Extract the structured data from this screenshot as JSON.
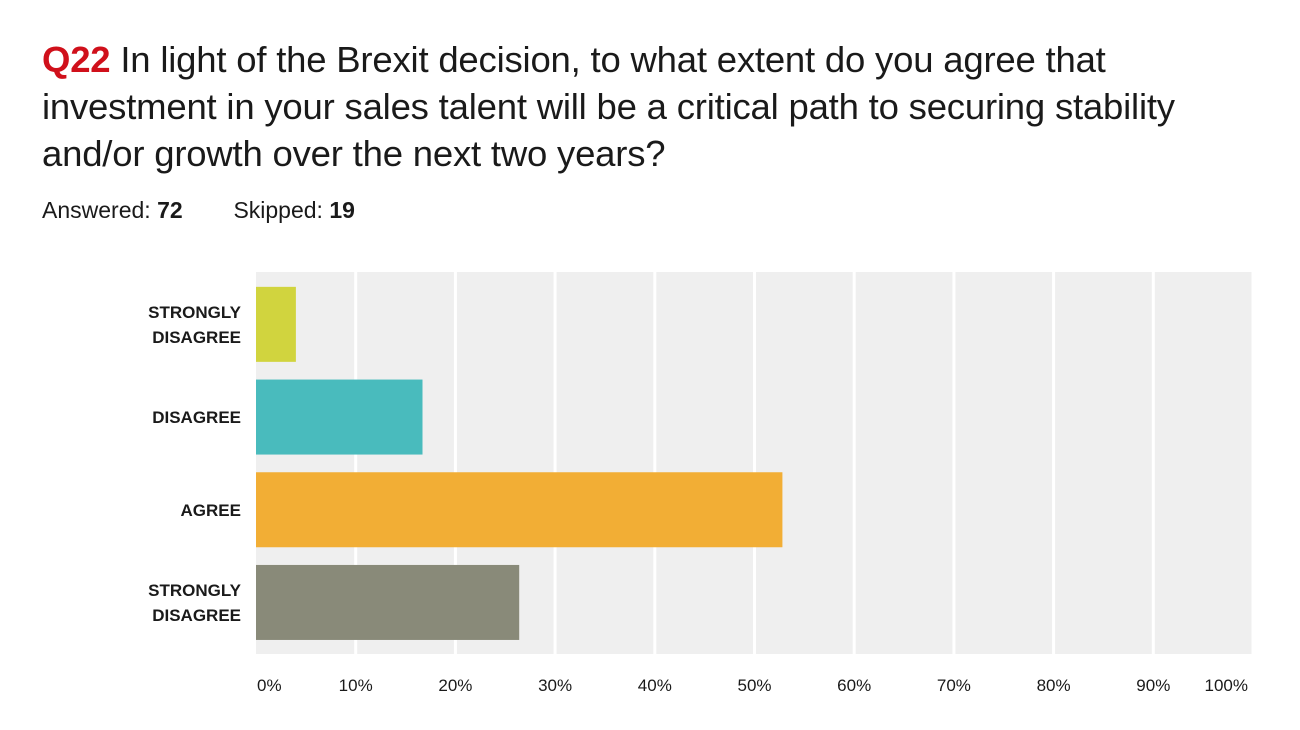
{
  "question": {
    "number": "Q22",
    "text": "In light of the Brexit decision, to what extent do you agree that investment in your sales talent will be a critical path to securing stability and/or growth over the next two years?"
  },
  "stats": {
    "answered_label": "Answered:",
    "answered_value": "72",
    "skipped_label": "Skipped:",
    "skipped_value": "19"
  },
  "colors": {
    "question_number": "#d0101b",
    "plot_background": "#efefef",
    "gridline": "#ffffff"
  },
  "chart_data": {
    "type": "bar",
    "orientation": "horizontal",
    "categories": [
      [
        "STRONGLY",
        "DISAGREE"
      ],
      [
        "DISAGREE"
      ],
      [
        "AGREE"
      ],
      [
        "STRONGLY",
        "DISAGREE"
      ]
    ],
    "values": [
      4,
      16.7,
      52.8,
      26.4
    ],
    "bar_colors": [
      "#d1d43e",
      "#49bbbd",
      "#f2ae35",
      "#898a79"
    ],
    "xlim": [
      0,
      100
    ],
    "xticks": [
      "0%",
      "10%",
      "20%",
      "30%",
      "40%",
      "50%",
      "60%",
      "70%",
      "80%",
      "90%",
      "100%"
    ],
    "grid": true,
    "legend": "none"
  }
}
